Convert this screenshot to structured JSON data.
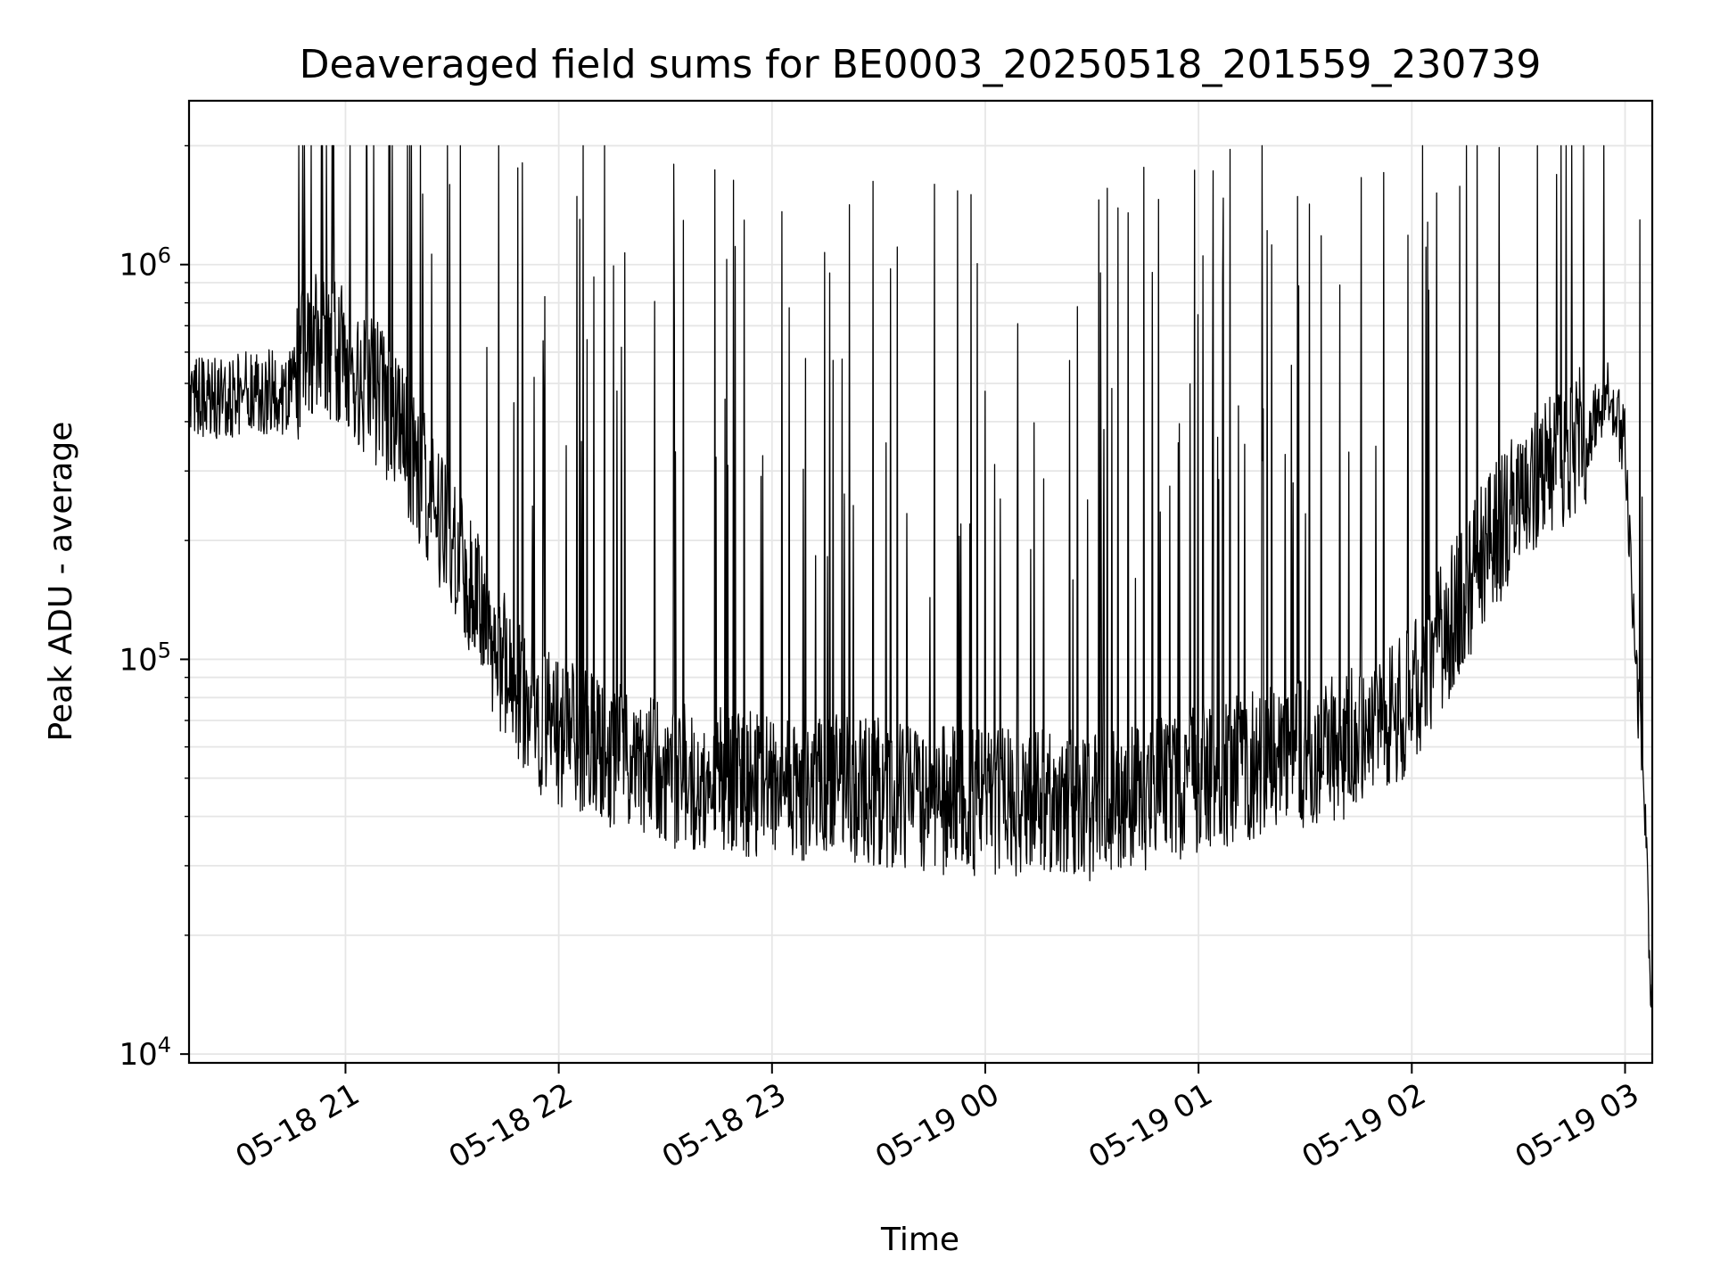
{
  "chart_data": {
    "type": "line",
    "title": "Deaveraged field sums for BE0003_20250518_201559_230739",
    "xlabel": "Time",
    "ylabel": "Peak ADU - average",
    "yscale": "log",
    "ylim": [
      9500,
      2600000
    ],
    "xlim": [
      "2025-05-18 20:15:59",
      "2025-05-19 03:07:39"
    ],
    "grid": true,
    "line_color": "#000000",
    "x_ticks": [
      {
        "t": "2025-05-18 21:00",
        "label": "05-18 21"
      },
      {
        "t": "2025-05-18 22:00",
        "label": "05-18 22"
      },
      {
        "t": "2025-05-18 23:00",
        "label": "05-18 23"
      },
      {
        "t": "2025-05-19 00:00",
        "label": "05-19 00"
      },
      {
        "t": "2025-05-19 01:00",
        "label": "05-19 01"
      },
      {
        "t": "2025-05-19 02:00",
        "label": "05-19 02"
      },
      {
        "t": "2025-05-19 03:00",
        "label": "05-19 03"
      }
    ],
    "y_ticks": [
      {
        "value": 10000,
        "base": "10",
        "exp": "4"
      },
      {
        "value": 100000,
        "base": "10",
        "exp": "5"
      },
      {
        "value": 1000000,
        "base": "10",
        "exp": "6"
      }
    ],
    "series": [
      {
        "x": [
          "2025-05-18 20:16",
          "2025-05-18 20:25",
          "2025-05-18 20:35",
          "2025-05-18 20:44",
          "2025-05-18 20:50",
          "2025-05-18 21:00",
          "2025-05-18 21:10",
          "2025-05-18 21:20",
          "2025-05-18 21:30",
          "2025-05-18 21:40",
          "2025-05-18 21:50",
          "2025-05-18 22:00",
          "2025-05-18 22:10",
          "2025-05-18 22:20",
          "2025-05-18 22:30",
          "2025-05-18 22:40",
          "2025-05-18 22:50",
          "2025-05-18 23:00",
          "2025-05-18 23:15",
          "2025-05-18 23:30",
          "2025-05-18 23:45",
          "2025-05-19 00:00",
          "2025-05-19 00:15",
          "2025-05-19 00:30",
          "2025-05-19 00:45",
          "2025-05-19 01:00",
          "2025-05-19 01:15",
          "2025-05-19 01:30",
          "2025-05-19 01:45",
          "2025-05-19 02:00",
          "2025-05-19 02:10",
          "2025-05-19 02:20",
          "2025-05-19 02:30",
          "2025-05-19 02:40",
          "2025-05-19 02:50",
          "2025-05-19 02:55",
          "2025-05-19 03:00",
          "2025-05-19 03:03",
          "2025-05-19 03:05",
          "2025-05-19 03:07"
        ],
        "y": [
          450000,
          460000,
          480000,
          470000,
          650000,
          600000,
          450000,
          300000,
          200000,
          120000,
          75000,
          65000,
          60000,
          56000,
          52000,
          50000,
          49000,
          48000,
          47000,
          46000,
          44000,
          43000,
          44000,
          42000,
          45000,
          50000,
          54000,
          58000,
          62000,
          80000,
          120000,
          180000,
          250000,
          320000,
          380000,
          500000,
          350000,
          90000,
          60000,
          15000
        ]
      }
    ]
  }
}
